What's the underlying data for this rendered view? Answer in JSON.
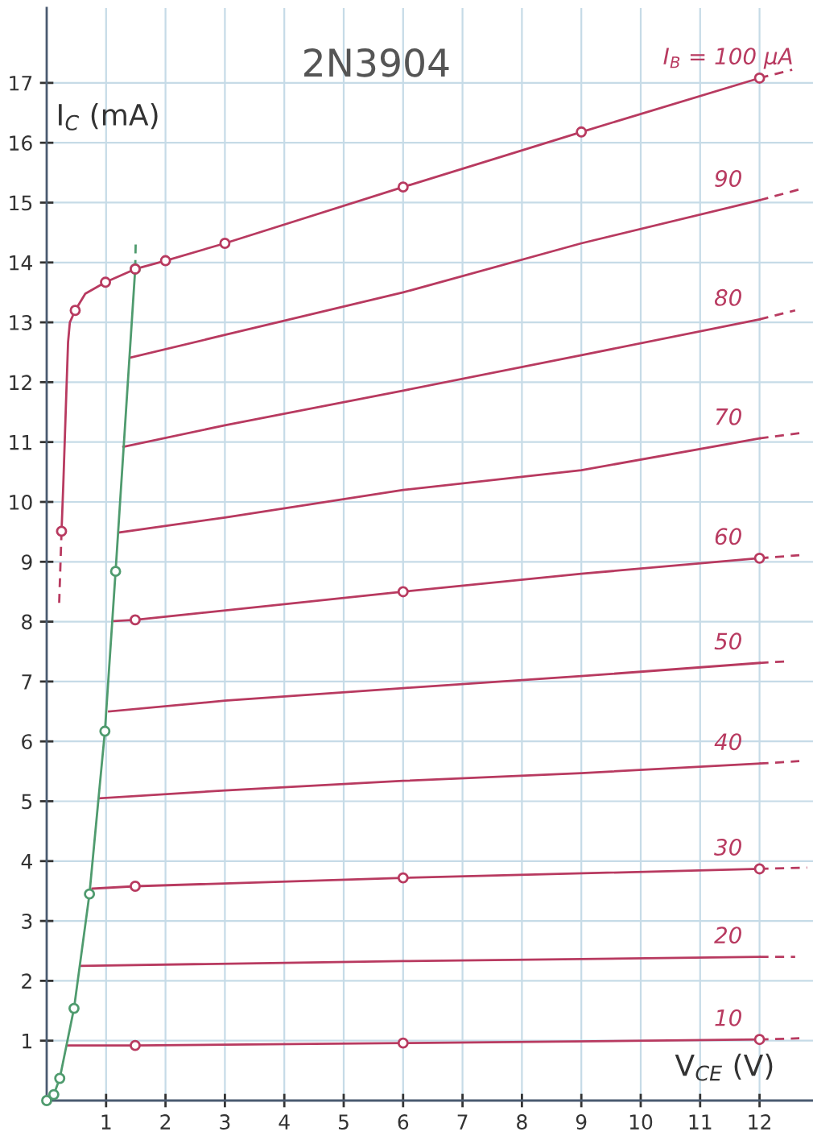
{
  "chart_data": {
    "type": "line",
    "title": "2N3904",
    "xlabel": "V$_{CE}$ (V)",
    "ylabel": "I$_{C}$ (mA)",
    "xlim": [
      0,
      12.9
    ],
    "ylim": [
      0,
      18.25
    ],
    "xticks": [
      1,
      2,
      3,
      4,
      5,
      6,
      7,
      8,
      9,
      10,
      11,
      12
    ],
    "yticks": [
      1,
      2,
      3,
      4,
      5,
      6,
      7,
      8,
      9,
      10,
      11,
      12,
      13,
      14,
      15,
      16,
      17
    ],
    "grid": true,
    "line_style": "solid",
    "series": [
      {
        "name": "I$_{B}$ = 100 µA",
        "color": "#b83a60",
        "x": [
          0.25,
          0.28,
          0.33,
          0.36,
          0.39,
          0.48,
          0.65,
          0.99,
          1.49,
          2,
          3,
          6,
          9,
          12
        ],
        "values": [
          9.51,
          10.3,
          11.8,
          12.67,
          13.0,
          13.2,
          13.48,
          13.67,
          13.89,
          14.03,
          14.32,
          15.26,
          16.18,
          17.08
        ]
      },
      {
        "color": "#b83a60",
        "line_style": "dashed",
        "x": [
          12,
          12.55
        ],
        "values": [
          17.08,
          17.22
        ]
      },
      {
        "color": "#b83a60",
        "line_style": "dashed",
        "x": [
          0.25,
          0.21
        ],
        "values": [
          9.51,
          8.3
        ]
      },
      {
        "name": "90",
        "color": "#b83a60",
        "x": [
          1.41,
          3,
          6,
          9,
          12
        ],
        "values": [
          12.41,
          12.79,
          13.5,
          14.32,
          15.04
        ]
      },
      {
        "color": "#b83a60",
        "line_style": "dashed",
        "x": [
          12,
          12.67
        ],
        "values": [
          15.04,
          15.22
        ]
      },
      {
        "name": "80",
        "color": "#b83a60",
        "x": [
          1.29,
          3,
          6,
          9,
          12
        ],
        "values": [
          10.92,
          11.28,
          11.86,
          12.45,
          13.05
        ]
      },
      {
        "color": "#b83a60",
        "line_style": "dashed",
        "x": [
          12,
          12.6
        ],
        "values": [
          13.05,
          13.2
        ]
      },
      {
        "name": "70",
        "color": "#b83a60",
        "x": [
          1.22,
          3,
          6,
          9,
          12
        ],
        "values": [
          9.49,
          9.74,
          10.2,
          10.53,
          11.06
        ]
      },
      {
        "color": "#b83a60",
        "line_style": "dashed",
        "x": [
          12,
          12.67
        ],
        "values": [
          11.06,
          11.15
        ]
      },
      {
        "name": "60",
        "color": "#b83a60",
        "x": [
          1.14,
          1.49,
          6,
          9,
          12
        ],
        "values": [
          8.01,
          8.03,
          8.5,
          8.8,
          9.06
        ]
      },
      {
        "color": "#b83a60",
        "line_style": "dashed",
        "x": [
          12,
          12.67
        ],
        "values": [
          9.06,
          9.11
        ]
      },
      {
        "name": "50",
        "color": "#b83a60",
        "x": [
          1.05,
          3,
          6,
          9,
          12
        ],
        "values": [
          6.5,
          6.68,
          6.89,
          7.09,
          7.31
        ]
      },
      {
        "color": "#b83a60",
        "line_style": "dashed",
        "x": [
          12,
          12.5
        ],
        "values": [
          7.31,
          7.34
        ]
      },
      {
        "name": "40",
        "color": "#b83a60",
        "x": [
          0.89,
          3,
          6,
          9,
          12
        ],
        "values": [
          5.05,
          5.18,
          5.34,
          5.47,
          5.63
        ]
      },
      {
        "color": "#b83a60",
        "line_style": "dashed",
        "x": [
          12,
          12.67
        ],
        "values": [
          5.63,
          5.67
        ]
      },
      {
        "name": "30",
        "color": "#b83a60",
        "x": [
          0.77,
          1.49,
          6,
          12
        ],
        "values": [
          3.54,
          3.58,
          3.72,
          3.87
        ]
      },
      {
        "color": "#b83a60",
        "line_style": "dashed",
        "x": [
          12,
          12.8
        ],
        "values": [
          3.87,
          3.89
        ]
      },
      {
        "name": "20",
        "color": "#b83a60",
        "x": [
          0.57,
          6,
          12
        ],
        "values": [
          2.25,
          2.33,
          2.4
        ]
      },
      {
        "color": "#b83a60",
        "line_style": "dashed",
        "x": [
          12,
          12.6
        ],
        "values": [
          2.4,
          2.4
        ]
      },
      {
        "name": "10",
        "color": "#b83a60",
        "x": [
          0.36,
          1.49,
          6,
          12
        ],
        "values": [
          0.92,
          0.92,
          0.96,
          1.02
        ]
      },
      {
        "color": "#b83a60",
        "line_style": "dashed",
        "x": [
          12,
          12.67
        ],
        "values": [
          1.02,
          1.04
        ]
      },
      {
        "color": "#4f9b6e",
        "marker": "circle",
        "x": [
          0,
          0.12,
          0.22,
          0.46,
          0.72,
          0.98,
          1.16,
          1.49
        ],
        "values": [
          0,
          0.1,
          0.37,
          1.54,
          3.45,
          6.17,
          8.84,
          13.89
        ]
      },
      {
        "color": "#4f9b6e",
        "line_style": "dashed",
        "x": [
          1.49,
          1.5
        ],
        "values": [
          13.89,
          14.41
        ]
      },
      {
        "type": "scatter",
        "color": "#b83a60",
        "marker": "circle",
        "x": [
          0.25,
          0.48,
          0.99,
          1.49,
          2,
          3,
          6,
          9,
          12,
          1.49,
          6,
          12,
          1.49,
          6,
          12,
          1.49,
          6,
          12
        ],
        "values": [
          9.51,
          13.2,
          13.67,
          13.89,
          14.03,
          14.32,
          15.26,
          16.18,
          17.08,
          8.03,
          8.5,
          9.06,
          3.58,
          3.72,
          3.87,
          0.92,
          0.96,
          1.02
        ]
      }
    ]
  }
}
